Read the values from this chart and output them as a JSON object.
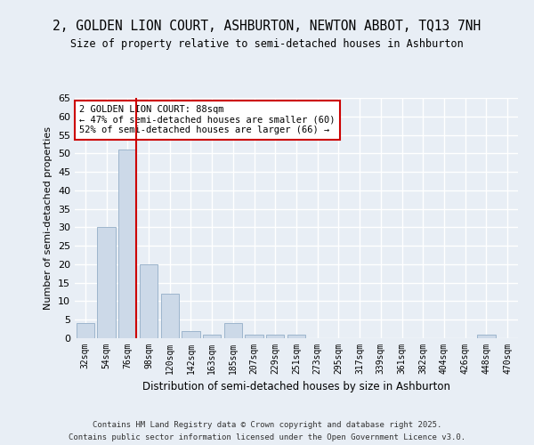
{
  "title": "2, GOLDEN LION COURT, ASHBURTON, NEWTON ABBOT, TQ13 7NH",
  "subtitle": "Size of property relative to semi-detached houses in Ashburton",
  "xlabel": "Distribution of semi-detached houses by size in Ashburton",
  "ylabel": "Number of semi-detached properties",
  "categories": [
    "32sqm",
    "54sqm",
    "76sqm",
    "98sqm",
    "120sqm",
    "142sqm",
    "163sqm",
    "185sqm",
    "207sqm",
    "229sqm",
    "251sqm",
    "273sqm",
    "295sqm",
    "317sqm",
    "339sqm",
    "361sqm",
    "382sqm",
    "404sqm",
    "426sqm",
    "448sqm",
    "470sqm"
  ],
  "values": [
    4,
    30,
    51,
    20,
    12,
    2,
    1,
    4,
    1,
    1,
    1,
    0,
    0,
    0,
    0,
    0,
    0,
    0,
    0,
    1,
    0
  ],
  "bar_color": "#ccd9e8",
  "bar_edge_color": "#9db5cc",
  "vline_color": "#cc0000",
  "annotation_title": "2 GOLDEN LION COURT: 88sqm",
  "annotation_line1": "← 47% of semi-detached houses are smaller (60)",
  "annotation_line2": "52% of semi-detached houses are larger (66) →",
  "annotation_box_color": "#cc0000",
  "ylim": [
    0,
    65
  ],
  "yticks": [
    0,
    5,
    10,
    15,
    20,
    25,
    30,
    35,
    40,
    45,
    50,
    55,
    60,
    65
  ],
  "fig_bg_color": "#e8eef5",
  "plot_bg_color": "#e8eef5",
  "grid_color": "#ffffff",
  "footer1": "Contains HM Land Registry data © Crown copyright and database right 2025.",
  "footer2": "Contains public sector information licensed under the Open Government Licence v3.0."
}
